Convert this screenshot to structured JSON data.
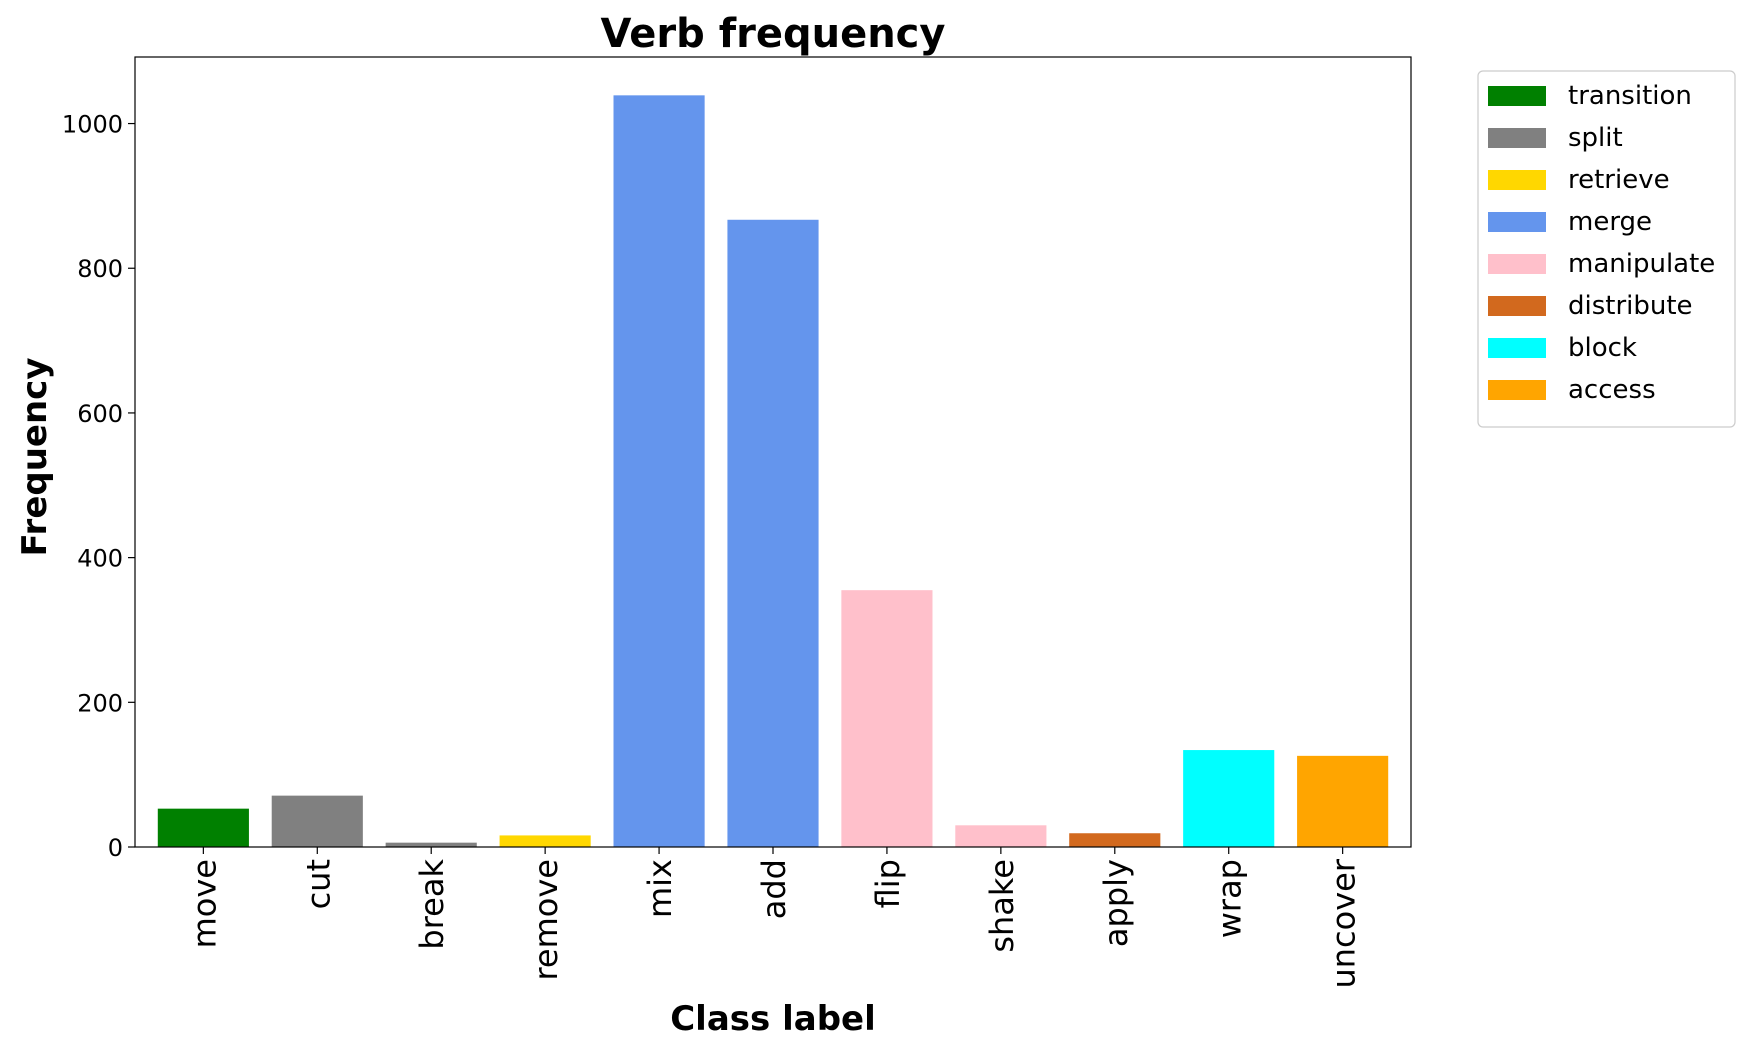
{
  "chart_data": {
    "type": "bar",
    "title": "Verb frequency",
    "xlabel": "Class label",
    "ylabel": "Frequency",
    "ylim": [
      0,
      1092
    ],
    "yticks": [
      0,
      200,
      400,
      600,
      800,
      1000
    ],
    "grid": false,
    "legend_position": "outside-top-right",
    "categories": [
      "move",
      "cut",
      "break",
      "remove",
      "mix",
      "add",
      "flip",
      "shake",
      "apply",
      "wrap",
      "uncover"
    ],
    "values": [
      53,
      71,
      6,
      16,
      1039,
      867,
      355,
      30,
      19,
      134,
      126
    ],
    "bar_groups": [
      "transition",
      "split",
      "split",
      "retrieve",
      "merge",
      "merge",
      "manipulate",
      "manipulate",
      "distribute",
      "block",
      "access"
    ],
    "legend": [
      {
        "name": "transition",
        "color": "#008000"
      },
      {
        "name": "split",
        "color": "#808080"
      },
      {
        "name": "retrieve",
        "color": "#FFD700"
      },
      {
        "name": "merge",
        "color": "#6495ED"
      },
      {
        "name": "manipulate",
        "color": "#FFC0CB"
      },
      {
        "name": "distribute",
        "color": "#D2691E"
      },
      {
        "name": "block",
        "color": "#00FFFF"
      },
      {
        "name": "access",
        "color": "#FFA500"
      }
    ]
  }
}
